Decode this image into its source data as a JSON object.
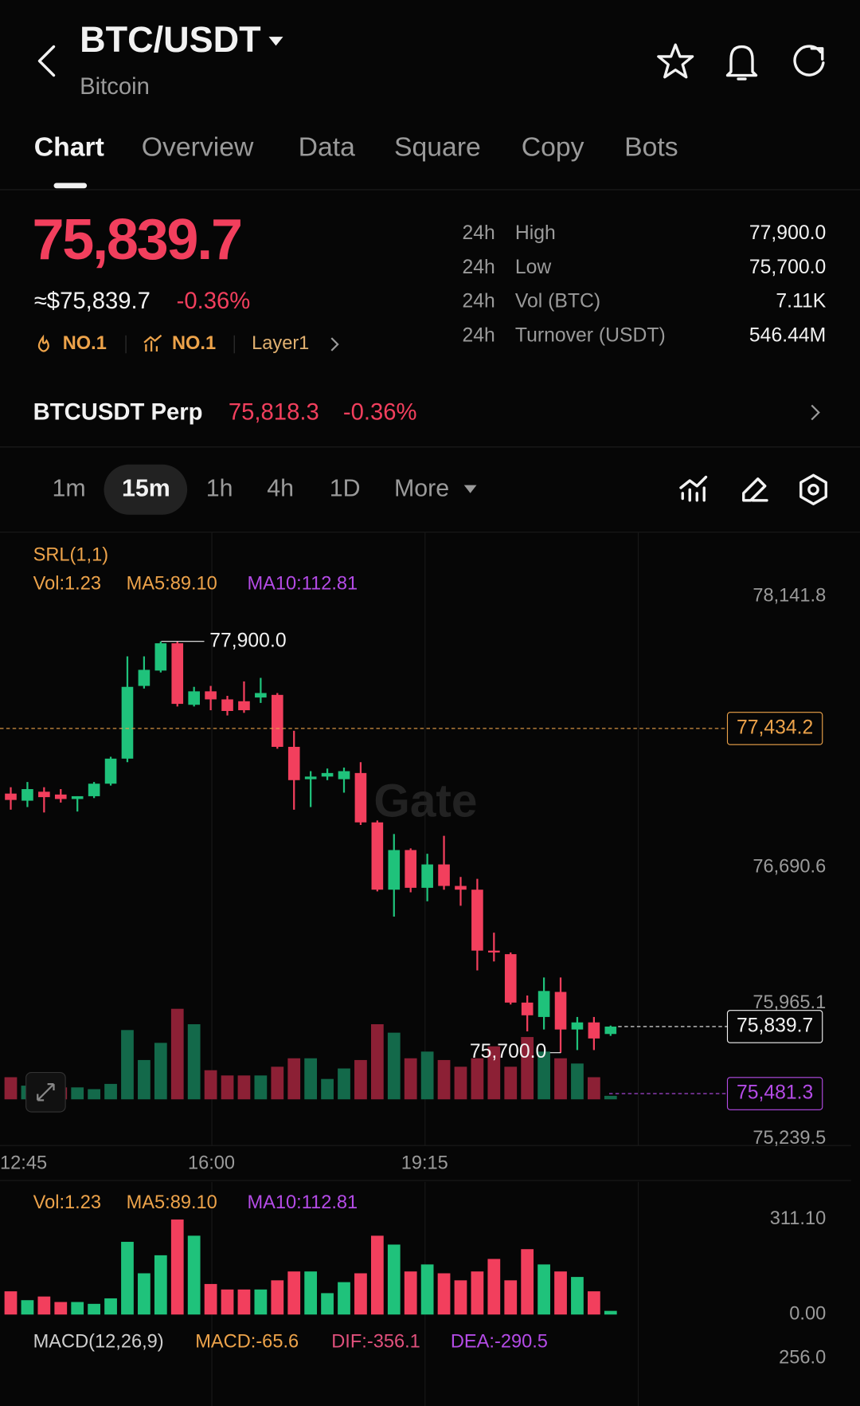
{
  "header": {
    "pair": "BTC/USDT",
    "name": "Bitcoin"
  },
  "tabs": [
    "Chart",
    "Overview",
    "Data",
    "Square",
    "Copy",
    "Bots"
  ],
  "price": {
    "last": "75,839.7",
    "usd": "≈$75,839.7",
    "change": "-0.36%",
    "tags": [
      "NO.1",
      "NO.1",
      "Layer1"
    ]
  },
  "stats": [
    {
      "period": "24h",
      "name": "High",
      "value": "77,900.0"
    },
    {
      "period": "24h",
      "name": "Low",
      "value": "75,700.0"
    },
    {
      "period": "24h",
      "name": "Vol (BTC)",
      "value": "7.11K"
    },
    {
      "period": "24h",
      "name": "Turnover (USDT)",
      "value": "546.44M"
    }
  ],
  "perp": {
    "name": "BTCUSDT Perp",
    "price": "75,818.3",
    "change": "-0.36%"
  },
  "intervals": [
    "1m",
    "15m",
    "1h",
    "4h",
    "1D",
    "More"
  ],
  "watermark": "Gate",
  "chart_data": {
    "type": "candlestick",
    "indicator": "SRL(1,1)",
    "ma_labels": [
      "Vol:1.23",
      "MA5:89.10",
      "MA10:112.81"
    ],
    "x_labels": [
      "12:45",
      "16:00",
      "19:15"
    ],
    "open": [
      77086,
      77048,
      77096,
      77081,
      77057,
      77072,
      77139,
      77273,
      77662,
      77744,
      77890,
      77561,
      77633,
      77590,
      77580,
      77600,
      77614,
      77336,
      77163,
      77177,
      77163,
      77196,
      76932,
      76572,
      76784,
      76582,
      76707,
      76592,
      76572,
      76246,
      76227,
      75968,
      75891,
      76025,
      75824,
      75862,
      75800
    ],
    "high": [
      77120,
      77148,
      77120,
      77110,
      77072,
      77148,
      77283,
      77820,
      77820,
      77900,
      77900,
      77657,
      77662,
      77609,
      77686,
      77705,
      77624,
      77422,
      77206,
      77220,
      77225,
      77254,
      76942,
      76870,
      76793,
      76764,
      76860,
      76640,
      76630,
      76342,
      76236,
      76006,
      76102,
      76102,
      75891,
      75891,
      75845
    ],
    "low": [
      77000,
      77014,
      76985,
      77038,
      76990,
      77062,
      77129,
      77254,
      77648,
      77734,
      77552,
      77552,
      77532,
      77504,
      77518,
      77571,
      77326,
      77000,
      77014,
      77158,
      77091,
      76918,
      76563,
      76428,
      76558,
      76510,
      76572,
      76486,
      76140,
      76188,
      75958,
      75814,
      75824,
      75700,
      75714,
      75714,
      75790
    ],
    "close": [
      77052,
      77110,
      77067,
      77057,
      77072,
      77139,
      77273,
      77657,
      77748,
      77890,
      77566,
      77633,
      77590,
      77528,
      77532,
      77624,
      77336,
      77158,
      77177,
      77196,
      77206,
      76932,
      76572,
      76784,
      76582,
      76707,
      76592,
      76572,
      76246,
      76236,
      75968,
      75900,
      76030,
      75824,
      75862,
      75776,
      75839.7
    ],
    "ylim": [
      75201,
      78482
    ],
    "yticks": [
      {
        "value": 78141.8,
        "label": "78,141.8"
      },
      {
        "value": 76690.6,
        "label": "76,690.6"
      },
      {
        "value": 75965.1,
        "label": "75,965.1"
      },
      {
        "value": 75239.5,
        "label": "75,239.5"
      }
    ],
    "price_lines": [
      {
        "value": 77434.2,
        "label": "77,434.2",
        "color": "#eda34a"
      },
      {
        "value": 75839.7,
        "label": "75,839.7",
        "color": "#f2f2f2"
      },
      {
        "value": 75481.3,
        "label": "75,481.3",
        "color": "#b44be6"
      }
    ],
    "high_mark": {
      "value": 77900,
      "label": "77,900.0"
    },
    "low_mark": {
      "value": 75700,
      "label": "75,700.0"
    },
    "up_color": "#1fc27b",
    "down_color": "#f23f5d",
    "volume": {
      "values": [
        76,
        47,
        59,
        41,
        41,
        35,
        53,
        238,
        135,
        194,
        311,
        258,
        100,
        82,
        82,
        82,
        112,
        141,
        141,
        70,
        106,
        135,
        258,
        229,
        141,
        164,
        135,
        112,
        141,
        182,
        112,
        214,
        164,
        141,
        123,
        76,
        12
      ],
      "ylim": [
        0,
        311.1
      ],
      "yticks": [
        {
          "value": 311.1,
          "label": "311.10"
        },
        {
          "value": 0,
          "label": "0.00"
        }
      ]
    },
    "macd": {
      "labels": [
        "MACD(12,26,9)",
        "MACD:-65.6",
        "DIF:-356.1",
        "DEA:-290.5"
      ],
      "ytick": "256.0"
    }
  }
}
